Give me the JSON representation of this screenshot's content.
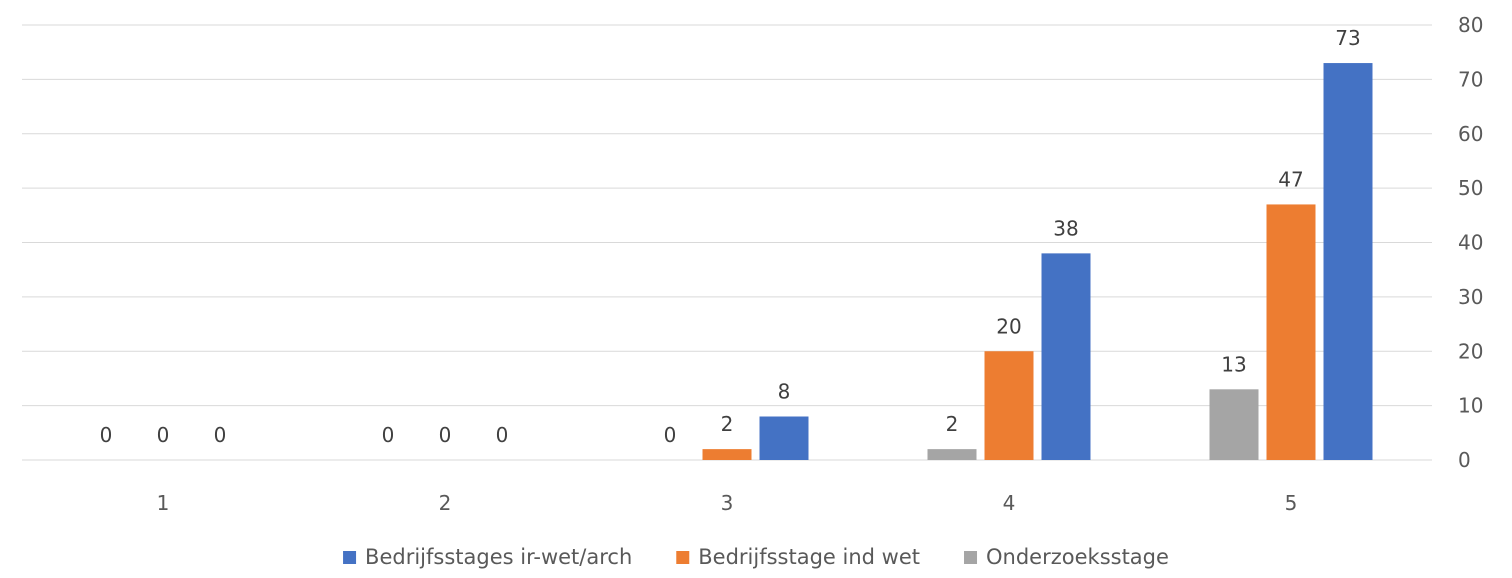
{
  "chart_data": {
    "type": "bar",
    "title": "",
    "xlabel": "",
    "ylabel": "",
    "categories": [
      "1",
      "2",
      "3",
      "4",
      "5"
    ],
    "series": [
      {
        "name": "Onderzoeksstage",
        "color": "#a5a5a5",
        "values": [
          0,
          0,
          0,
          2,
          13
        ]
      },
      {
        "name": "Bedrijfsstage ind wet",
        "color": "#ed7d31",
        "values": [
          0,
          0,
          2,
          20,
          47
        ]
      },
      {
        "name": "Bedrijfsstages ir-wet/arch",
        "color": "#4472c4",
        "values": [
          0,
          0,
          8,
          38,
          73
        ]
      }
    ],
    "legend_order": [
      "Bedrijfsstages ir-wet/arch",
      "Bedrijfsstage ind wet",
      "Onderzoeksstage"
    ],
    "ylim": [
      0,
      80
    ],
    "yticks": [
      0,
      10,
      20,
      30,
      40,
      50,
      60,
      70,
      80
    ],
    "y_axis_side": "right",
    "grid": true,
    "legend_position": "bottom",
    "gridline_color": "#d9d9d9"
  }
}
